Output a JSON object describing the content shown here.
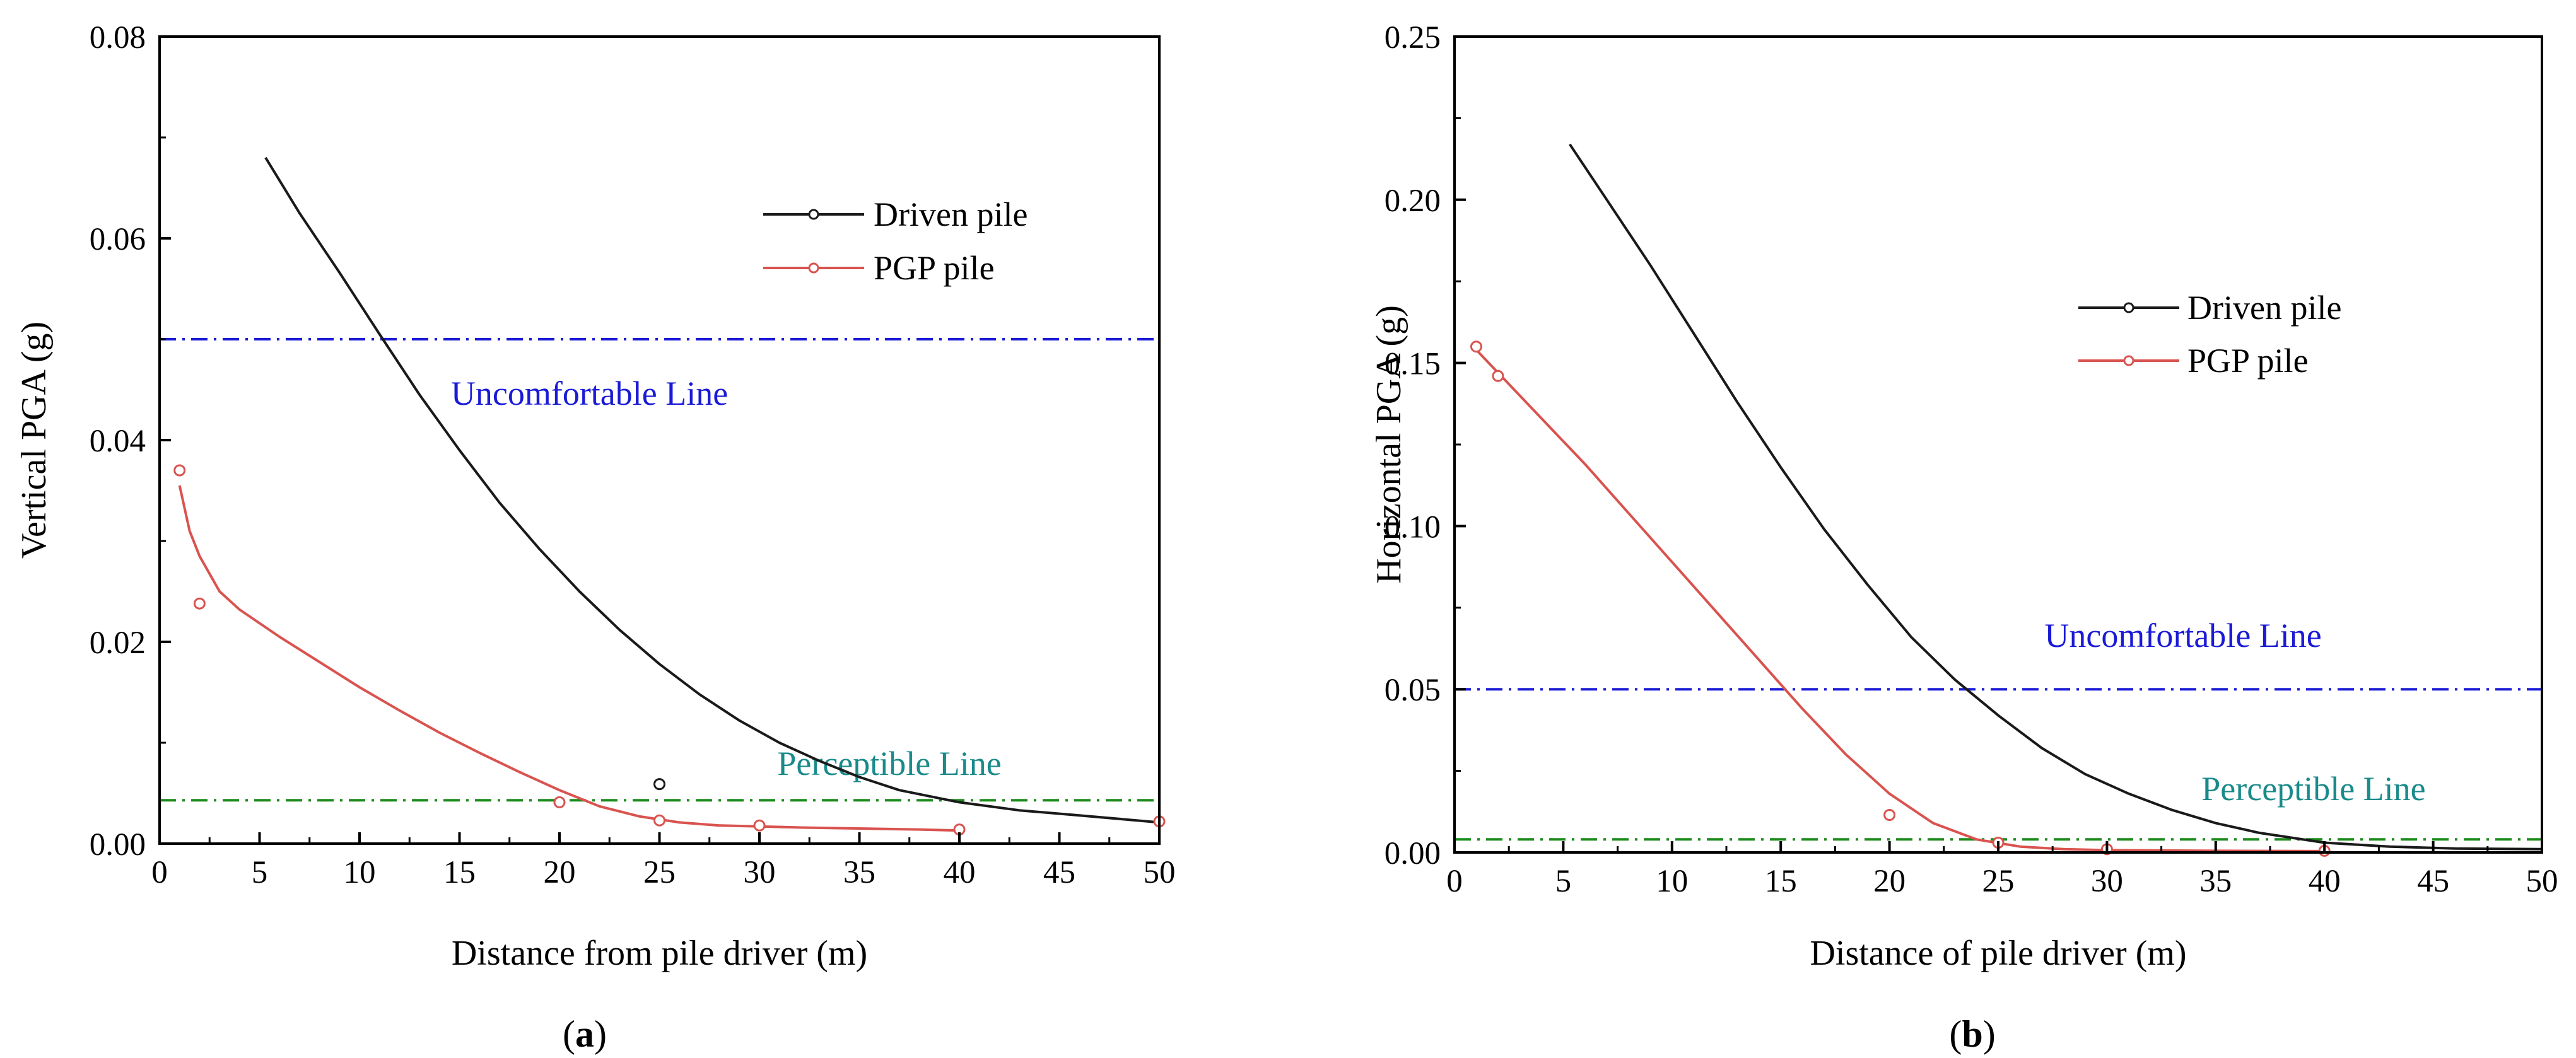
{
  "colors": {
    "driven": "#1a1a1a",
    "pgp": "#d9534f",
    "uncomfortable": "#1a1ad6",
    "perceptible": "#1a8a1a",
    "perceptible_text": "#1a8a8a",
    "axis": "#000000"
  },
  "chart_data": [
    {
      "type": "line",
      "panel_label": {
        "paren_open": "(",
        "letter": "a",
        "paren_close": ")"
      },
      "xlabel": "Distance from pile driver (m)",
      "ylabel": "Vertical PGA (g)",
      "xlim": [
        0,
        50
      ],
      "ylim": [
        0,
        0.08
      ],
      "xticks": [
        "0",
        "5",
        "10",
        "15",
        "20",
        "25",
        "30",
        "35",
        "40",
        "45",
        "50"
      ],
      "yticks": [
        "0.00",
        "0.02",
        "0.04",
        "0.06",
        "0.08"
      ],
      "legend": [
        "Driven pile",
        "PGP pile"
      ],
      "series": [
        {
          "name": "Driven pile",
          "color_key": "driven",
          "points": [
            [
              25,
              0.0059
            ]
          ],
          "curve": [
            [
              5.3,
              0.068
            ],
            [
              7,
              0.0625
            ],
            [
              9,
              0.0566
            ],
            [
              11,
              0.0505
            ],
            [
              13,
              0.0445
            ],
            [
              15,
              0.039
            ],
            [
              17,
              0.0338
            ],
            [
              19,
              0.0292
            ],
            [
              21,
              0.025
            ],
            [
              23,
              0.0212
            ],
            [
              25,
              0.0178
            ],
            [
              27,
              0.0148
            ],
            [
              29,
              0.0122
            ],
            [
              31,
              0.01
            ],
            [
              33,
              0.0082
            ],
            [
              35,
              0.0066
            ],
            [
              37,
              0.0053
            ],
            [
              40,
              0.0041
            ],
            [
              43,
              0.0033
            ],
            [
              46,
              0.0028
            ],
            [
              50,
              0.0021
            ]
          ]
        },
        {
          "name": "PGP pile",
          "color_key": "pgp",
          "points": [
            [
              1,
              0.037
            ],
            [
              2,
              0.0238
            ],
            [
              20,
              0.0041
            ],
            [
              25,
              0.0023
            ],
            [
              30,
              0.0018
            ],
            [
              40,
              0.0014
            ],
            [
              50,
              0.0022
            ]
          ],
          "curve": [
            [
              1,
              0.0355
            ],
            [
              1.5,
              0.031
            ],
            [
              2,
              0.0285
            ],
            [
              3,
              0.025
            ],
            [
              4,
              0.0232
            ],
            [
              6,
              0.0205
            ],
            [
              8,
              0.018
            ],
            [
              10,
              0.0155
            ],
            [
              12,
              0.0132
            ],
            [
              14,
              0.011
            ],
            [
              16,
              0.009
            ],
            [
              18,
              0.0071
            ],
            [
              20,
              0.0053
            ],
            [
              22,
              0.0037
            ],
            [
              24,
              0.0027
            ],
            [
              26,
              0.0021
            ],
            [
              28,
              0.0018
            ],
            [
              30,
              0.0017
            ],
            [
              32,
              0.0016
            ],
            [
              35,
              0.0015
            ],
            [
              38,
              0.0014
            ],
            [
              40,
              0.0013
            ]
          ]
        }
      ],
      "hlines": [
        {
          "name": "Uncomfortable Line",
          "y": 0.05,
          "color_key": "uncomfortable",
          "label_x": 21.5,
          "label_y": 0.0435
        },
        {
          "name": "Perceptible Line",
          "y": 0.0043,
          "color_key": "perceptible",
          "label_x": 36.5,
          "label_y": 0.0068
        }
      ]
    },
    {
      "type": "line",
      "panel_label": {
        "paren_open": "(",
        "letter": "b",
        "paren_close": ")"
      },
      "xlabel": "Distance of pile driver (m)",
      "ylabel": "Horizontal PGA (g)",
      "xlim": [
        0,
        50
      ],
      "ylim": [
        0,
        0.25
      ],
      "xticks": [
        "0",
        "5",
        "10",
        "15",
        "20",
        "25",
        "30",
        "35",
        "40",
        "45",
        "50"
      ],
      "yticks": [
        "0.00",
        "0.05",
        "0.10",
        "0.15",
        "0.20",
        "0.25"
      ],
      "legend": [
        "Driven pile",
        "PGP pile"
      ],
      "series": [
        {
          "name": "Driven pile",
          "color_key": "driven",
          "points": [],
          "curve": [
            [
              5.3,
              0.217
            ],
            [
              7,
              0.2
            ],
            [
              9,
              0.18
            ],
            [
              11,
              0.159
            ],
            [
              13,
              0.138
            ],
            [
              15,
              0.118
            ],
            [
              17,
              0.099
            ],
            [
              19,
              0.082
            ],
            [
              21,
              0.066
            ],
            [
              23,
              0.053
            ],
            [
              25,
              0.042
            ],
            [
              27,
              0.032
            ],
            [
              29,
              0.024
            ],
            [
              31,
              0.018
            ],
            [
              33,
              0.013
            ],
            [
              35,
              0.009
            ],
            [
              37,
              0.006
            ],
            [
              40,
              0.003
            ],
            [
              43,
              0.0018
            ],
            [
              46,
              0.0012
            ],
            [
              50,
              0.001
            ]
          ]
        },
        {
          "name": "PGP pile",
          "color_key": "pgp",
          "points": [
            [
              1,
              0.155
            ],
            [
              2,
              0.146
            ],
            [
              20,
              0.0115
            ],
            [
              25,
              0.003
            ],
            [
              30,
              0.001
            ],
            [
              40,
              0.0005
            ]
          ],
          "curve": [
            [
              1,
              0.154
            ],
            [
              2,
              0.147
            ],
            [
              4,
              0.133
            ],
            [
              6,
              0.119
            ],
            [
              8,
              0.104
            ],
            [
              10,
              0.089
            ],
            [
              12,
              0.074
            ],
            [
              14,
              0.059
            ],
            [
              16,
              0.044
            ],
            [
              18,
              0.03
            ],
            [
              20,
              0.018
            ],
            [
              22,
              0.009
            ],
            [
              24,
              0.004
            ],
            [
              26,
              0.0018
            ],
            [
              28,
              0.001
            ],
            [
              30,
              0.0007
            ],
            [
              35,
              0.0005
            ],
            [
              40,
              0.0004
            ]
          ]
        }
      ],
      "hlines": [
        {
          "name": "Uncomfortable Line",
          "y": 0.05,
          "color_key": "uncomfortable",
          "label_x": 33.5,
          "label_y": 0.063
        },
        {
          "name": "Perceptible Line",
          "y": 0.004,
          "color_key": "perceptible",
          "label_x": 39.5,
          "label_y": 0.016
        }
      ]
    }
  ]
}
